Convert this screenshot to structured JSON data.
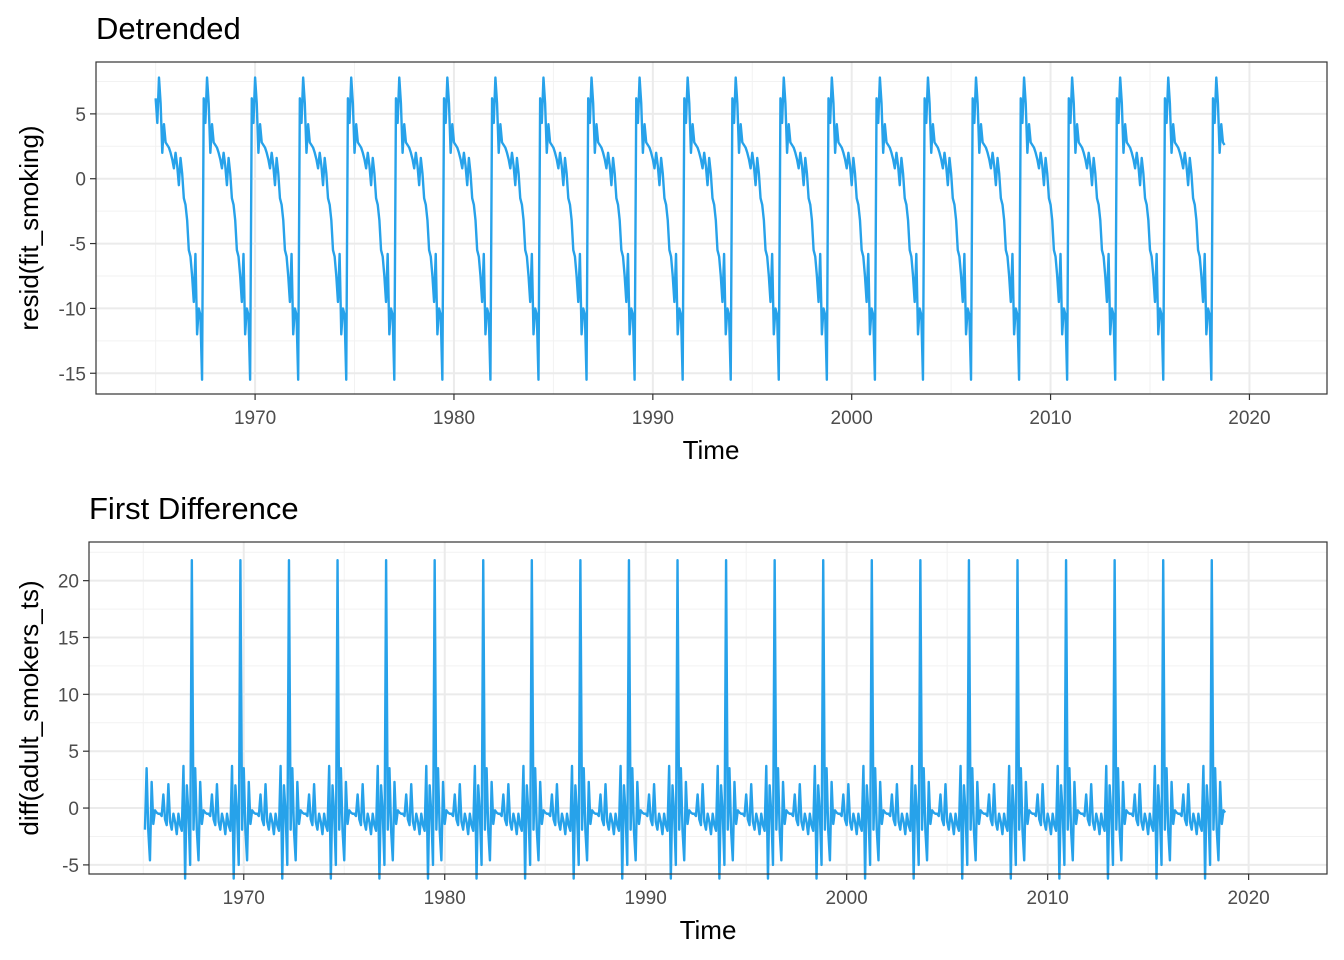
{
  "colors": {
    "series": "#27a2ea"
  },
  "chart_data": [
    {
      "type": "line",
      "title": "Detrended",
      "xlabel": "Time",
      "ylabel": "resid(fit_smoking)",
      "xlim": [
        1962.0,
        2023.9
      ],
      "ylim": [
        -16.6,
        9.0
      ],
      "x_ticks": [
        1970,
        1980,
        1990,
        2000,
        2010,
        2020
      ],
      "x_tick_labels": [
        "1970",
        "1980",
        "1990",
        "2000",
        "2010",
        "2020"
      ],
      "y_ticks": [
        -15,
        -10,
        -5,
        0,
        5
      ],
      "y_tick_labels": [
        "-15",
        "-10",
        "-5",
        "0",
        "5"
      ],
      "grid": true,
      "x_start": 1965.0,
      "x_step": 0.0833333,
      "cycle_values": [
        6.2,
        4.3,
        7.8,
        5.8,
        2.0,
        4.2,
        2.8,
        2.6,
        2.4,
        2.0,
        1.5,
        0.8,
        2.0,
        1.0,
        -0.5,
        1.6,
        0.4,
        -1.5,
        -2.0,
        -3.2,
        -5.5,
        -6.0,
        -7.5,
        -9.5,
        -5.8,
        -12.0,
        -10.0,
        -10.5,
        -15.5
      ],
      "cycles": 22
    },
    {
      "type": "line",
      "title": "First Difference",
      "xlabel": "Time",
      "ylabel": "diff(adult_smokers_ts)",
      "xlim": [
        1962.3,
        2023.9
      ],
      "ylim": [
        -5.8,
        23.4
      ],
      "x_ticks": [
        1970,
        1980,
        1990,
        2000,
        2010,
        2020
      ],
      "x_tick_labels": [
        "1970",
        "1980",
        "1990",
        "2000",
        "2010",
        "2020"
      ],
      "y_ticks": [
        -5,
        0,
        5,
        10,
        15,
        20
      ],
      "y_tick_labels": [
        "-5",
        "0",
        "5",
        "10",
        "15",
        "20"
      ],
      "grid": true,
      "x_start": 1965.0833,
      "x_step": 0.0833333,
      "cycle_values": [
        -1.9,
        3.5,
        -2.0,
        -4.6,
        2.3,
        -1.4,
        -0.2,
        -0.4,
        -0.5,
        -0.5,
        -0.7,
        1.2,
        -1.0,
        -1.5,
        2.1,
        -1.2,
        -1.9,
        -0.5,
        -1.2,
        -2.3,
        -0.5,
        -1.5,
        -2.0,
        3.7,
        -6.2,
        2.0,
        -0.5,
        -5.0,
        21.8
      ],
      "cycles": 22
    }
  ]
}
